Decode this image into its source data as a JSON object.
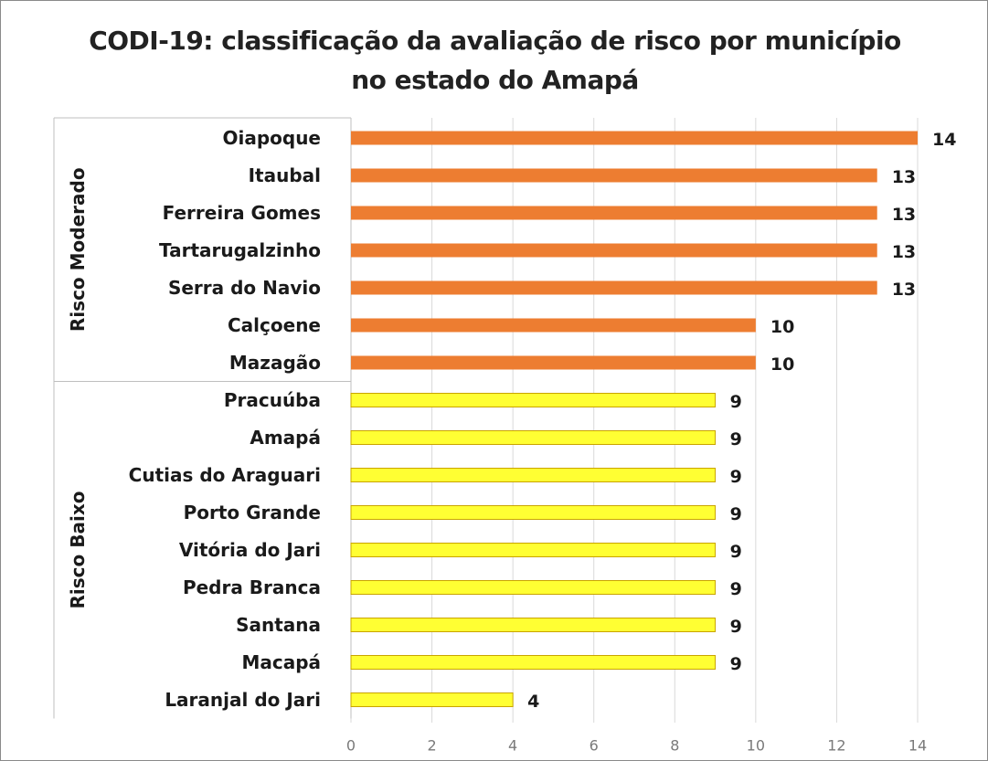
{
  "chart_data": {
    "type": "bar",
    "orientation": "horizontal",
    "title": "CODI-19: classificação da avaliação de risco por município no estado do Amapá",
    "title_lines": [
      "CODI-19: classificação da avaliação de risco por município",
      "no estado do Amapá"
    ],
    "xlim": [
      0,
      14
    ],
    "x_ticks": [
      0,
      2,
      4,
      6,
      8,
      10,
      12,
      14
    ],
    "grid": "vertical",
    "legend": "none",
    "data_labels": true,
    "groups": [
      {
        "name": "Risco Moderado",
        "color": "#ED7D31",
        "categories": [
          "Oiapoque",
          "Itaubal",
          "Ferreira Gomes",
          "Tartarugalzinho",
          "Serra do Navio",
          "Calçoene",
          "Mazagão"
        ],
        "values": [
          14,
          13,
          13,
          13,
          13,
          10,
          10
        ]
      },
      {
        "name": "Risco Baixo",
        "color": "#FFFF33",
        "categories": [
          "Pracuúba",
          "Amapá",
          "Cutias do Araguari",
          "Porto Grande",
          "Vitória do Jari",
          "Pedra Branca",
          "Santana",
          "Macapá",
          "Laranjal do Jari"
        ],
        "values": [
          9,
          9,
          9,
          9,
          9,
          9,
          9,
          9,
          4
        ]
      }
    ]
  }
}
